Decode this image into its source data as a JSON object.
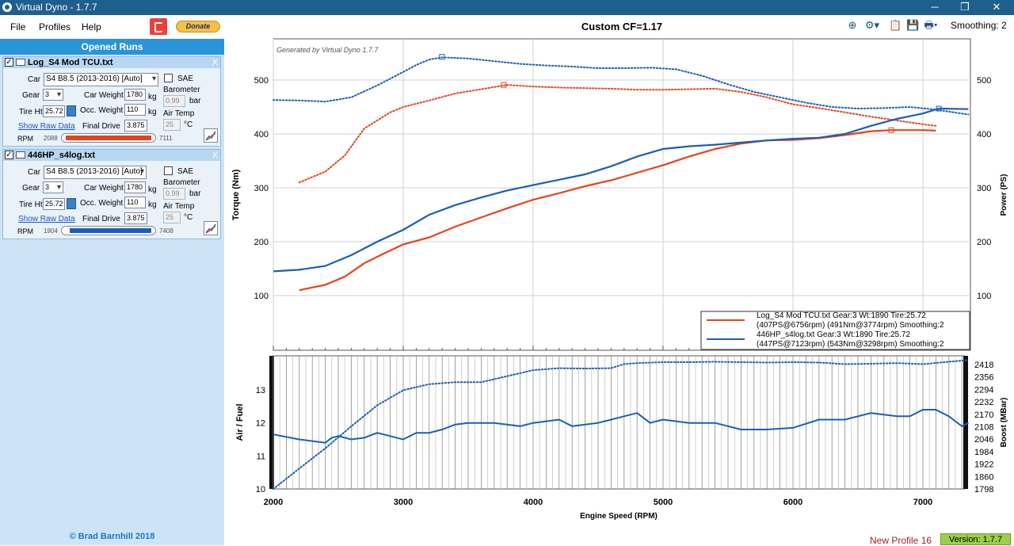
{
  "window": {
    "title": "Virtual Dyno - 1.7.7",
    "minimize": "─",
    "maximize": "❐",
    "close": "✕"
  },
  "menu": [
    "File",
    "Profiles",
    "Help"
  ],
  "donate_label": "Donate",
  "sidebar": {
    "title": "Opened Runs",
    "copyright": "© Brad Barnhill 2018",
    "runs": [
      {
        "name": "Log_S4 Mod TCU.txt",
        "checked": true,
        "car_label": "Car",
        "car_value": "S4 B8.5 (2013-2016) [Auto]",
        "sae_label": "SAE",
        "gear_label": "Gear",
        "gear_value": "3",
        "car_weight_label": "Car Weight",
        "car_weight_value": "1780",
        "car_weight_unit": "kg",
        "barometer_label": "Barometer",
        "barometer_value": "0.99",
        "barometer_unit": "bar",
        "tire_label": "Tire Ht",
        "tire_value": "25.72",
        "occ_weight_label": "Occ. Weight",
        "occ_weight_value": "110",
        "occ_weight_unit": "kg",
        "air_temp_label": "Air Temp",
        "air_temp_value": "25",
        "air_temp_unit": "°C",
        "raw_data_link": "Show Raw Data",
        "final_drive_label": "Final Drive",
        "final_drive_value": "3.875",
        "rpm_label": "RPM",
        "rpm_min": "2088",
        "rpm_max": "7111",
        "color": "#e8421c"
      },
      {
        "name": "446HP_s4log.txt",
        "checked": true,
        "car_label": "Car",
        "car_value": "S4 B8.5 (2013-2016) [Auto]",
        "sae_label": "SAE",
        "gear_label": "Gear",
        "gear_value": "3",
        "car_weight_label": "Car Weight",
        "car_weight_value": "1780",
        "car_weight_unit": "kg",
        "barometer_label": "Barometer",
        "barometer_value": "0.99",
        "barometer_unit": "bar",
        "tire_label": "Tire Ht",
        "tire_value": "25.72",
        "occ_weight_label": "Occ. Weight",
        "occ_weight_value": "110",
        "occ_weight_unit": "kg",
        "air_temp_label": "Air Temp",
        "air_temp_value": "25",
        "air_temp_unit": "°C",
        "raw_data_link": "Show Raw Data",
        "final_drive_label": "Final Drive",
        "final_drive_value": "3.875",
        "rpm_label": "RPM",
        "rpm_min": "1904",
        "rpm_max": "7408",
        "color": "#1a5fb4"
      }
    ]
  },
  "toolbar": {
    "smoothing": "Smoothing: 2",
    "icons": [
      "zoom-icon",
      "settings-icon",
      "paste-icon",
      "save-icon",
      "print-icon"
    ]
  },
  "status": {
    "profile": "New Profile 16",
    "version": "Version: 1.7.7"
  },
  "chart_data": [
    {
      "type": "line",
      "title": "Custom CF=1.17",
      "watermark": "Generated by Virtual Dyno 1.7.7",
      "xlabel": "",
      "ylabel": "Torque (Nm)",
      "y2label": "Power (PS)",
      "xlim": [
        2000,
        7350
      ],
      "ylim": [
        0,
        580
      ],
      "y_ticks": [
        100,
        200,
        300,
        400,
        500
      ],
      "y2_ticks": [
        100,
        200,
        300,
        400,
        500
      ],
      "legend": [
        {
          "line1": "Log_S4 Mod TCU.txt Gear:3 Wt:1890 Tire:25.72",
          "line2": "(407PS@6756rpm) (491Nm@3774rpm) Smoothing:2",
          "color": "#e8421c"
        },
        {
          "line1": "446HP_s4log.txt Gear:3 Wt:1890 Tire:25.72",
          "line2": "(447PS@7123rpm) (543Nm@3298rpm) Smoothing:2",
          "color": "#1a5fb4"
        }
      ],
      "series": [
        {
          "name": "Log_S4 Mod TCU.txt Torque",
          "axis": "left",
          "style": "dotted",
          "color": "#e8421c",
          "x": [
            2200,
            2400,
            2550,
            2700,
            2900,
            3000,
            3200,
            3400,
            3600,
            3800,
            4000,
            4200,
            4400,
            4600,
            4800,
            5000,
            5200,
            5400,
            5600,
            5800,
            6000,
            6200,
            6400,
            6600,
            6800,
            7000,
            7100
          ],
          "y": [
            310,
            330,
            360,
            410,
            440,
            450,
            462,
            475,
            483,
            491,
            488,
            486,
            485,
            484,
            482,
            482,
            483,
            484,
            478,
            468,
            455,
            448,
            440,
            432,
            425,
            418,
            415
          ]
        },
        {
          "name": "446HP_s4log.txt Torque",
          "axis": "left",
          "style": "dotted",
          "color": "#1a5fb4",
          "x": [
            2000,
            2200,
            2400,
            2600,
            2800,
            3000,
            3100,
            3200,
            3300,
            3500,
            3700,
            3900,
            4100,
            4300,
            4500,
            4700,
            4900,
            5100,
            5300,
            5500,
            5700,
            5900,
            6100,
            6300,
            6500,
            6700,
            6900,
            7100,
            7350
          ],
          "y": [
            463,
            462,
            460,
            468,
            490,
            515,
            528,
            538,
            542,
            540,
            535,
            530,
            527,
            525,
            522,
            522,
            523,
            520,
            508,
            492,
            478,
            468,
            458,
            450,
            447,
            448,
            450,
            445,
            436
          ]
        },
        {
          "name": "Log_S4 Mod TCU.txt Power",
          "axis": "right",
          "style": "solid",
          "color": "#e8421c",
          "x": [
            2200,
            2400,
            2550,
            2700,
            2850,
            3000,
            3200,
            3400,
            3600,
            3800,
            4000,
            4200,
            4400,
            4600,
            4800,
            5000,
            5200,
            5400,
            5600,
            5800,
            6000,
            6200,
            6400,
            6600,
            6756,
            7000,
            7100
          ],
          "y": [
            110,
            120,
            135,
            160,
            178,
            195,
            208,
            228,
            245,
            262,
            278,
            290,
            303,
            314,
            328,
            342,
            358,
            372,
            382,
            388,
            389,
            392,
            398,
            405,
            407,
            407,
            406
          ]
        },
        {
          "name": "446HP_s4log.txt Power",
          "axis": "right",
          "style": "solid",
          "color": "#1a5fb4",
          "x": [
            2000,
            2200,
            2400,
            2600,
            2800,
            3000,
            3200,
            3400,
            3600,
            3800,
            4000,
            4200,
            4400,
            4600,
            4800,
            5000,
            5200,
            5400,
            5600,
            5800,
            6000,
            6200,
            6400,
            6600,
            6800,
            7000,
            7123,
            7350
          ],
          "y": [
            145,
            148,
            155,
            175,
            200,
            222,
            250,
            268,
            282,
            295,
            305,
            315,
            325,
            340,
            358,
            372,
            377,
            380,
            384,
            388,
            391,
            393,
            400,
            415,
            428,
            438,
            447,
            446
          ]
        }
      ]
    },
    {
      "type": "line",
      "xlabel": "Engine Speed (RPM)",
      "ylabel": "Air / Fuel",
      "y2label": "Boost (MBar)",
      "xlim": [
        2000,
        7350
      ],
      "ylim": [
        10,
        14
      ],
      "x_ticks": [
        2000,
        3000,
        4000,
        5000,
        6000,
        7000
      ],
      "y_ticks": [
        10,
        11,
        12,
        13
      ],
      "y2_ticks": [
        1798,
        1860,
        1922,
        1984,
        2046,
        2108,
        2170,
        2232,
        2294,
        2356,
        2418
      ],
      "y2lim": [
        1798,
        2449
      ],
      "series": [
        {
          "name": "Air / Fuel",
          "axis": "left",
          "style": "solid",
          "color": "#1a5fb4",
          "x": [
            2000,
            2200,
            2400,
            2450,
            2500,
            2600,
            2700,
            2800,
            2900,
            3000,
            3100,
            3200,
            3300,
            3400,
            3500,
            3700,
            3900,
            4000,
            4100,
            4200,
            4300,
            4500,
            4700,
            4800,
            4900,
            5000,
            5200,
            5400,
            5600,
            5800,
            6000,
            6200,
            6400,
            6600,
            6800,
            6900,
            7000,
            7100,
            7200,
            7300,
            7350
          ],
          "y": [
            11.65,
            11.5,
            11.4,
            11.55,
            11.6,
            11.5,
            11.55,
            11.7,
            11.6,
            11.5,
            11.7,
            11.7,
            11.8,
            11.95,
            12.0,
            12.0,
            11.9,
            12.0,
            12.05,
            12.1,
            11.9,
            12.0,
            12.2,
            12.3,
            12.0,
            12.1,
            12.0,
            12.0,
            11.8,
            11.8,
            11.85,
            12.1,
            12.1,
            12.3,
            12.2,
            12.2,
            12.4,
            12.4,
            12.2,
            11.9,
            12.0
          ]
        },
        {
          "name": "Boost (MBar)",
          "axis": "right",
          "style": "dotted",
          "color": "#1a5fb4",
          "x": [
            2000,
            2200,
            2400,
            2600,
            2800,
            3000,
            3200,
            3400,
            3600,
            3800,
            4000,
            4200,
            4400,
            4600,
            4700,
            4800,
            5000,
            5200,
            5400,
            5600,
            5800,
            6000,
            6200,
            6400,
            6600,
            6800,
            7000,
            7200,
            7350
          ],
          "y": [
            1798,
            1900,
            2000,
            2110,
            2215,
            2290,
            2320,
            2330,
            2330,
            2360,
            2390,
            2400,
            2398,
            2400,
            2420,
            2425,
            2430,
            2430,
            2432,
            2430,
            2428,
            2430,
            2428,
            2420,
            2422,
            2425,
            2420,
            2432,
            2440
          ]
        }
      ]
    }
  ]
}
